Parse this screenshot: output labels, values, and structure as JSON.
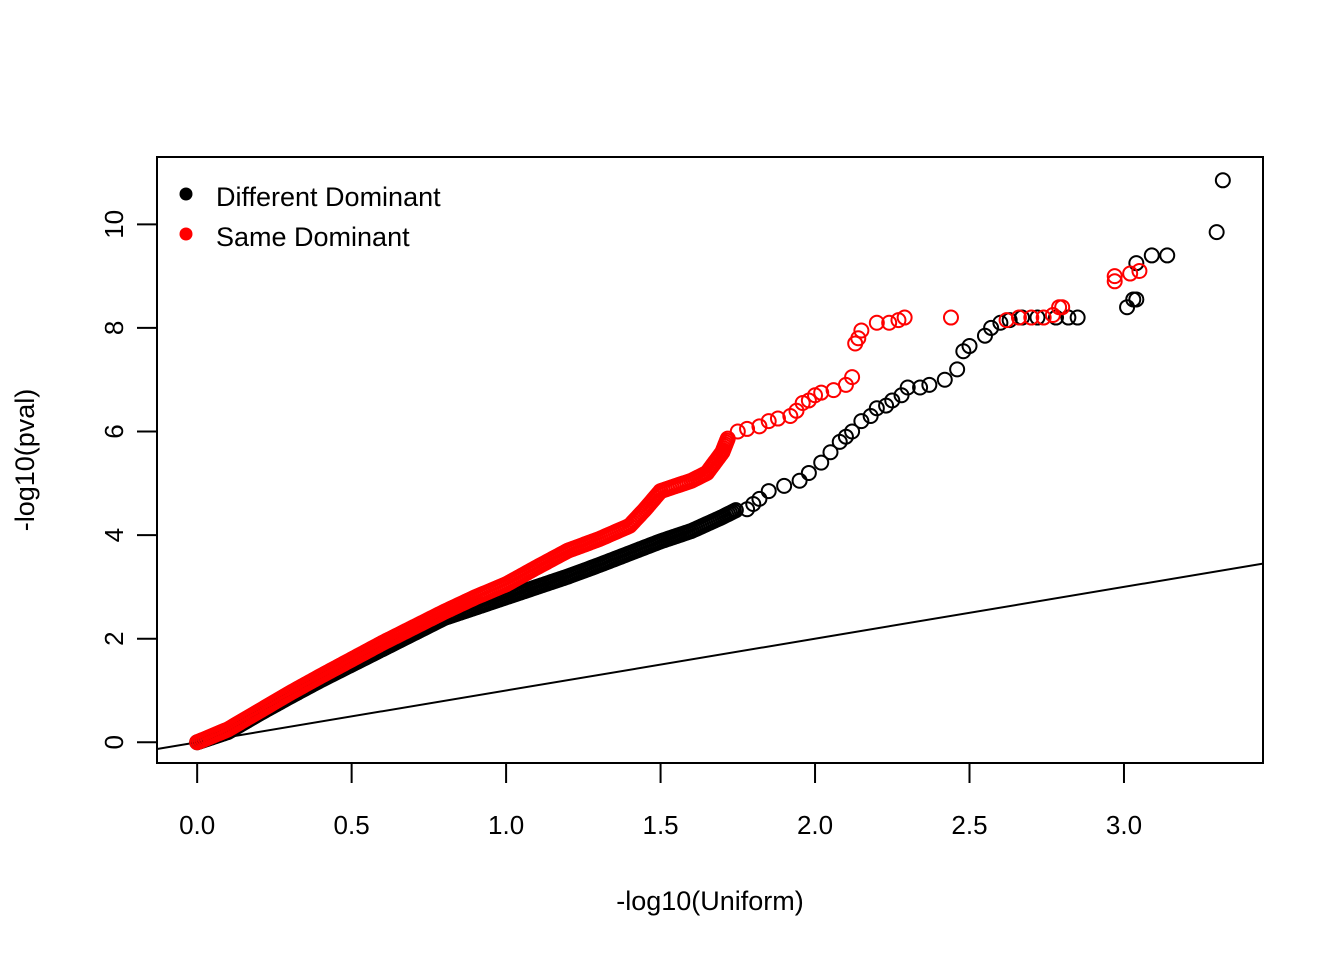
{
  "chart_data": {
    "type": "scatter",
    "title": "",
    "xlabel": "-log10(Uniform)",
    "ylabel": "-log10(pval)",
    "xlim": [
      -0.13,
      3.45
    ],
    "ylim": [
      -0.4,
      11.3
    ],
    "x_ticks": [
      0.0,
      0.5,
      1.0,
      1.5,
      2.0,
      2.5,
      3.0
    ],
    "x_tick_labels": [
      "0.0",
      "0.5",
      "1.0",
      "1.5",
      "2.0",
      "2.5",
      "3.0"
    ],
    "y_ticks": [
      0,
      2,
      4,
      6,
      8,
      10
    ],
    "y_tick_labels": [
      "0",
      "2",
      "4",
      "6",
      "8",
      "10"
    ],
    "grid": false,
    "legend_position": "top-left",
    "reference_line": {
      "intercept": 0,
      "slope": 1
    },
    "series": [
      {
        "name": "Different Dominant",
        "color": "#000000",
        "marker": "open-circle",
        "dense_trace": [
          [
            0.0,
            0.0
          ],
          [
            0.1,
            0.2
          ],
          [
            0.2,
            0.55
          ],
          [
            0.3,
            0.88
          ],
          [
            0.4,
            1.2
          ],
          [
            0.5,
            1.5
          ],
          [
            0.6,
            1.8
          ],
          [
            0.7,
            2.1
          ],
          [
            0.8,
            2.4
          ],
          [
            0.9,
            2.6
          ],
          [
            1.0,
            2.8
          ],
          [
            1.1,
            3.0
          ],
          [
            1.2,
            3.2
          ],
          [
            1.3,
            3.42
          ],
          [
            1.4,
            3.65
          ],
          [
            1.5,
            3.88
          ],
          [
            1.6,
            4.08
          ],
          [
            1.7,
            4.35
          ],
          [
            1.75,
            4.5
          ]
        ],
        "points": [
          [
            1.78,
            4.5
          ],
          [
            1.8,
            4.6
          ],
          [
            1.82,
            4.7
          ],
          [
            1.85,
            4.85
          ],
          [
            1.9,
            4.95
          ],
          [
            1.95,
            5.05
          ],
          [
            1.98,
            5.2
          ],
          [
            2.02,
            5.4
          ],
          [
            2.05,
            5.6
          ],
          [
            2.08,
            5.8
          ],
          [
            2.1,
            5.9
          ],
          [
            2.12,
            6.0
          ],
          [
            2.15,
            6.2
          ],
          [
            2.18,
            6.3
          ],
          [
            2.2,
            6.45
          ],
          [
            2.23,
            6.5
          ],
          [
            2.25,
            6.6
          ],
          [
            2.28,
            6.7
          ],
          [
            2.3,
            6.85
          ],
          [
            2.34,
            6.85
          ],
          [
            2.37,
            6.9
          ],
          [
            2.42,
            7.0
          ],
          [
            2.46,
            7.2
          ],
          [
            2.48,
            7.55
          ],
          [
            2.5,
            7.65
          ],
          [
            2.55,
            7.85
          ],
          [
            2.57,
            8.0
          ],
          [
            2.6,
            8.1
          ],
          [
            2.63,
            8.15
          ],
          [
            2.67,
            8.2
          ],
          [
            2.72,
            8.2
          ],
          [
            2.78,
            8.2
          ],
          [
            2.82,
            8.2
          ],
          [
            2.85,
            8.2
          ],
          [
            3.01,
            8.4
          ],
          [
            3.03,
            8.55
          ],
          [
            3.04,
            8.55
          ],
          [
            3.04,
            9.25
          ],
          [
            3.09,
            9.4
          ],
          [
            3.14,
            9.4
          ],
          [
            3.3,
            9.85
          ],
          [
            3.32,
            10.85
          ]
        ]
      },
      {
        "name": "Same Dominant",
        "color": "#ff0000",
        "marker": "open-circle",
        "dense_trace": [
          [
            0.0,
            0.0
          ],
          [
            0.1,
            0.25
          ],
          [
            0.2,
            0.6
          ],
          [
            0.3,
            0.95
          ],
          [
            0.4,
            1.28
          ],
          [
            0.5,
            1.6
          ],
          [
            0.6,
            1.92
          ],
          [
            0.7,
            2.22
          ],
          [
            0.8,
            2.52
          ],
          [
            0.9,
            2.8
          ],
          [
            1.0,
            3.05
          ],
          [
            1.1,
            3.38
          ],
          [
            1.2,
            3.7
          ],
          [
            1.3,
            3.92
          ],
          [
            1.4,
            4.18
          ],
          [
            1.45,
            4.5
          ],
          [
            1.5,
            4.85
          ],
          [
            1.55,
            4.95
          ],
          [
            1.6,
            5.05
          ],
          [
            1.65,
            5.2
          ],
          [
            1.7,
            5.6
          ],
          [
            1.72,
            5.9
          ]
        ],
        "points": [
          [
            1.75,
            6.0
          ],
          [
            1.78,
            6.05
          ],
          [
            1.82,
            6.1
          ],
          [
            1.85,
            6.2
          ],
          [
            1.88,
            6.25
          ],
          [
            1.92,
            6.3
          ],
          [
            1.94,
            6.4
          ],
          [
            1.96,
            6.55
          ],
          [
            1.98,
            6.6
          ],
          [
            2.0,
            6.7
          ],
          [
            2.02,
            6.75
          ],
          [
            2.06,
            6.8
          ],
          [
            2.1,
            6.9
          ],
          [
            2.12,
            7.05
          ],
          [
            2.13,
            7.7
          ],
          [
            2.14,
            7.8
          ],
          [
            2.15,
            7.95
          ],
          [
            2.2,
            8.1
          ],
          [
            2.24,
            8.1
          ],
          [
            2.27,
            8.15
          ],
          [
            2.29,
            8.2
          ],
          [
            2.44,
            8.2
          ],
          [
            2.62,
            8.15
          ],
          [
            2.66,
            8.2
          ],
          [
            2.7,
            8.2
          ],
          [
            2.74,
            8.2
          ],
          [
            2.77,
            8.25
          ],
          [
            2.79,
            8.4
          ],
          [
            2.8,
            8.4
          ],
          [
            2.97,
            8.9
          ],
          [
            2.97,
            9.0
          ],
          [
            3.02,
            9.05
          ],
          [
            3.05,
            9.1
          ]
        ]
      }
    ]
  }
}
